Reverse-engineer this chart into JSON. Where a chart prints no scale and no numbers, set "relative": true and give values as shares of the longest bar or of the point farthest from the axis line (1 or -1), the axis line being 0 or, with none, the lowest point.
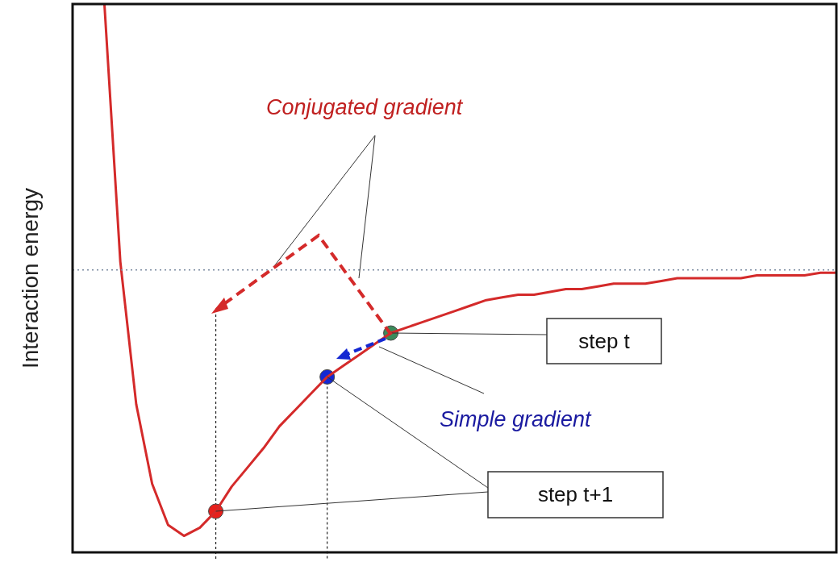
{
  "chart_data": {
    "type": "line",
    "relative": true,
    "ylabel": "Interaction energy",
    "tick_labels": false,
    "grid": false,
    "legend": false,
    "categories": [
      null,
      null,
      null,
      null,
      null,
      null,
      null,
      null,
      null,
      null,
      null,
      null,
      null,
      null,
      null,
      null,
      null,
      null,
      null,
      null,
      null,
      null,
      null,
      null,
      null,
      null,
      null,
      null,
      null,
      null,
      null,
      null,
      null,
      null,
      null,
      null,
      null,
      null,
      null,
      null,
      null,
      null,
      null,
      null,
      null,
      null,
      null,
      null,
      null
    ],
    "series": [
      {
        "color": "#d42a2a",
        "values": [
          null,
          null,
          1.0,
          0.53,
          0.27,
          0.125,
          0.05,
          0.03,
          0.045,
          0.075,
          0.12,
          0.155,
          0.19,
          0.23,
          0.26,
          0.29,
          0.32,
          0.34,
          0.36,
          0.38,
          0.4,
          0.41,
          0.42,
          0.43,
          0.44,
          0.45,
          0.46,
          0.465,
          0.47,
          0.47,
          0.475,
          0.48,
          0.48,
          0.485,
          0.49,
          0.49,
          0.49,
          0.495,
          0.5,
          0.5,
          0.5,
          0.5,
          0.5,
          0.505,
          0.505,
          0.505,
          0.505,
          0.51,
          0.51
        ]
      }
    ],
    "ref_lines": [
      {
        "axis": "y",
        "value": 0.515,
        "color": "#7a8aa0",
        "line_style": "dotted"
      }
    ],
    "annotations": [
      "Conjugated gradient",
      "Simple gradient",
      "step t",
      "step t+1"
    ]
  }
}
